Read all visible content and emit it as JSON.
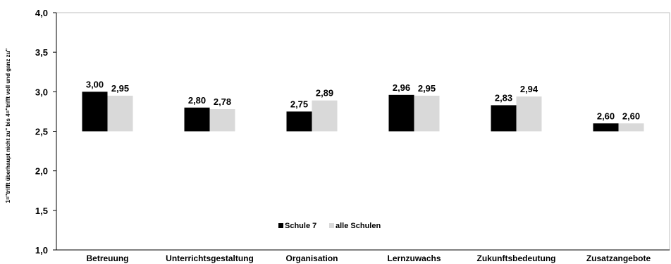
{
  "chart_data": {
    "type": "bar",
    "categories": [
      "Betreuung",
      "Unterrichtsgestaltung",
      "Organisation",
      "Lernzuwachs",
      "Zukunftsbedeutung",
      "Zusatzangebote"
    ],
    "series": [
      {
        "name": "Schule 7",
        "values": [
          3.0,
          2.8,
          2.75,
          2.96,
          2.83,
          2.6
        ],
        "labels": [
          "3,00",
          "2,80",
          "2,75",
          "2,96",
          "2,83",
          "2,60"
        ],
        "color": "#000000"
      },
      {
        "name": "alle Schulen",
        "values": [
          2.95,
          2.78,
          2.89,
          2.95,
          2.94,
          2.6
        ],
        "labels": [
          "2,95",
          "2,78",
          "2,89",
          "2,95",
          "2,94",
          "2,60"
        ],
        "color": "#d9d9d9"
      }
    ],
    "ylabel": "1=\"trifft überhaupt nicht zu\" bis 4=\"trifft voll und ganz zu\"",
    "ylim": [
      1.0,
      4.0
    ],
    "yticks": [
      1.0,
      1.5,
      2.0,
      2.5,
      3.0,
      3.5,
      4.0
    ],
    "ytick_labels": [
      "1,0",
      "1,5",
      "2,0",
      "2,5",
      "3,0",
      "3,5",
      "4,0"
    ],
    "grid": false,
    "legend_position": "inside-bottom-center",
    "baseline": 2.5
  }
}
